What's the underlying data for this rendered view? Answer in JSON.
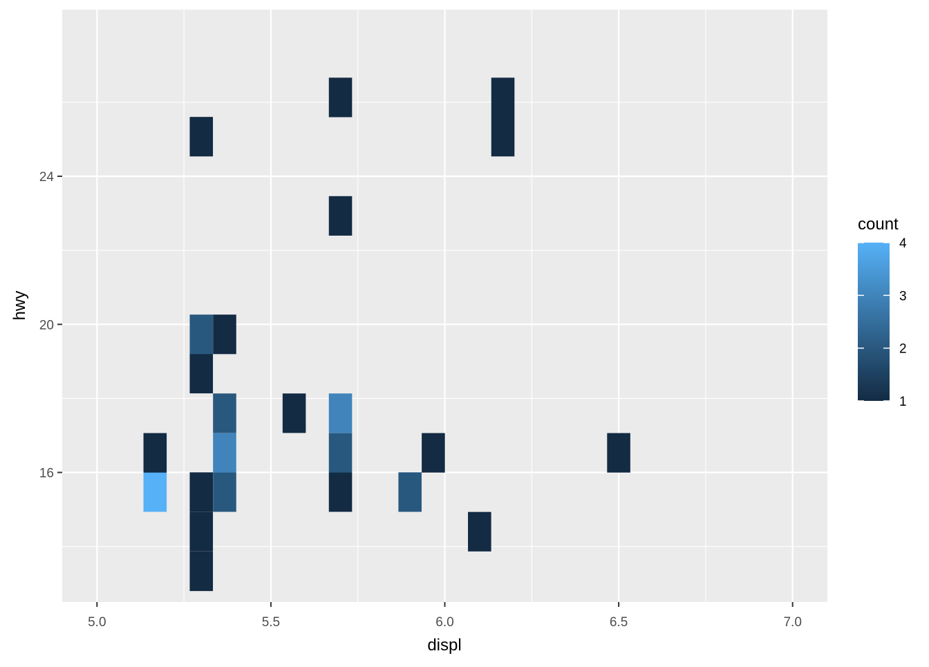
{
  "chart_data": {
    "type": "heatmap",
    "title": "",
    "xlabel": "displ",
    "ylabel": "hwy",
    "xlim": [
      4.9,
      7.1
    ],
    "ylim": [
      12.5,
      28.5
    ],
    "x_ticks": [
      5.0,
      5.5,
      6.0,
      6.5,
      7.0
    ],
    "x_tick_labels": [
      "5.0",
      "5.5",
      "6.0",
      "6.5",
      "7.0"
    ],
    "y_ticks": [
      16,
      20,
      24
    ],
    "y_tick_labels": [
      "16",
      "20",
      "24"
    ],
    "grid": true,
    "bin_width_x": 0.0667,
    "bin_height_y": 1.067,
    "bins": [
      {
        "x": 5.167,
        "y": 15.47,
        "count": 4
      },
      {
        "x": 5.167,
        "y": 16.53,
        "count": 1
      },
      {
        "x": 5.3,
        "y": 13.33,
        "count": 1
      },
      {
        "x": 5.3,
        "y": 14.4,
        "count": 1
      },
      {
        "x": 5.3,
        "y": 15.47,
        "count": 1
      },
      {
        "x": 5.3,
        "y": 18.67,
        "count": 1
      },
      {
        "x": 5.3,
        "y": 19.73,
        "count": 2
      },
      {
        "x": 5.3,
        "y": 25.07,
        "count": 1
      },
      {
        "x": 5.367,
        "y": 15.47,
        "count": 2
      },
      {
        "x": 5.367,
        "y": 16.53,
        "count": 3
      },
      {
        "x": 5.367,
        "y": 17.6,
        "count": 2
      },
      {
        "x": 5.367,
        "y": 19.73,
        "count": 1
      },
      {
        "x": 5.567,
        "y": 17.6,
        "count": 1
      },
      {
        "x": 5.7,
        "y": 15.47,
        "count": 1
      },
      {
        "x": 5.7,
        "y": 16.53,
        "count": 2
      },
      {
        "x": 5.7,
        "y": 17.6,
        "count": 3
      },
      {
        "x": 5.7,
        "y": 22.93,
        "count": 1
      },
      {
        "x": 5.7,
        "y": 26.13,
        "count": 1
      },
      {
        "x": 5.9,
        "y": 15.47,
        "count": 2
      },
      {
        "x": 5.967,
        "y": 16.53,
        "count": 1
      },
      {
        "x": 6.1,
        "y": 14.4,
        "count": 1
      },
      {
        "x": 6.167,
        "y": 25.07,
        "count": 1
      },
      {
        "x": 6.167,
        "y": 26.13,
        "count": 1
      },
      {
        "x": 6.5,
        "y": 16.53,
        "count": 1
      }
    ],
    "legend": {
      "title": "count",
      "position": "right",
      "min": 1,
      "max": 4,
      "breaks": [
        1,
        2,
        3,
        4
      ],
      "break_labels": [
        "1",
        "2",
        "3",
        "4"
      ],
      "low_color": "#132B43",
      "high_color": "#56B1F7"
    },
    "panel_background": "#EBEBEB",
    "grid_color": "#FFFFFF"
  }
}
